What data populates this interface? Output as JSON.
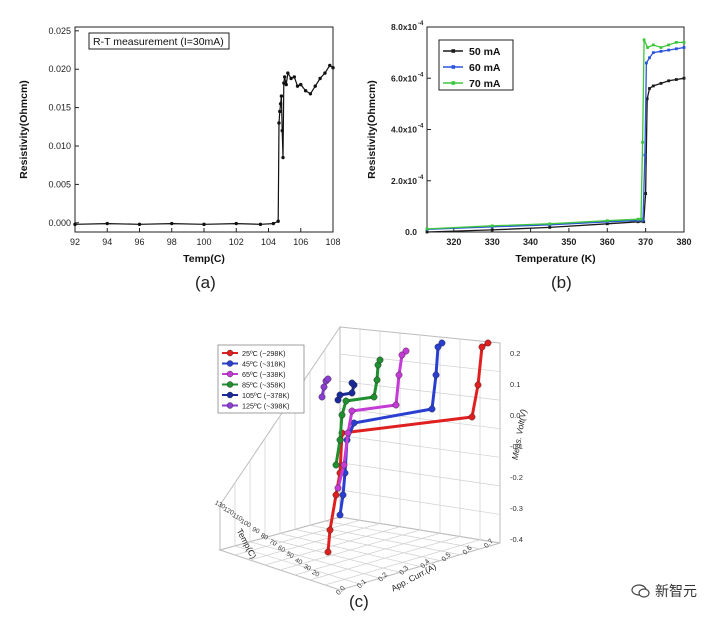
{
  "chart_data": [
    {
      "id": "a",
      "type": "line",
      "panel_label": "(a)",
      "legend_box": "R-T measurement (I=30mA)",
      "xlabel": "Temp(C)",
      "ylabel": "Resistivity(Ohmcm)",
      "xlim": [
        92,
        108
      ],
      "ylim": [
        -0.0012,
        0.0255
      ],
      "xticks": [
        92,
        94,
        96,
        98,
        100,
        102,
        104,
        106,
        108
      ],
      "yticks": [
        "0.000",
        "0.005",
        "0.010",
        "0.015",
        "0.020",
        "0.025"
      ],
      "series": [
        {
          "name": "R-T",
          "color": "#111111",
          "x": [
            92.0,
            94.0,
            96.0,
            98.0,
            100.0,
            102.0,
            103.5,
            104.3,
            104.6,
            104.65,
            104.7,
            104.75,
            104.8,
            104.85,
            104.9,
            104.95,
            105.0,
            105.1,
            105.2,
            105.4,
            105.6,
            105.8,
            106.0,
            106.3,
            106.6,
            106.9,
            107.2,
            107.5,
            107.8,
            108.0
          ],
          "y": [
            -0.0002,
            -0.0001,
            -0.0002,
            -0.0001,
            -0.0002,
            -0.0001,
            -0.0002,
            -0.0001,
            0.0002,
            0.013,
            0.0145,
            0.0155,
            0.0165,
            0.012,
            0.0085,
            0.0182,
            0.019,
            0.018,
            0.0195,
            0.0188,
            0.019,
            0.0178,
            0.018,
            0.0172,
            0.0168,
            0.0178,
            0.0188,
            0.0195,
            0.0205,
            0.0202
          ]
        }
      ]
    },
    {
      "id": "b",
      "type": "line",
      "panel_label": "(b)",
      "xlabel": "Temperature (K)",
      "ylabel": "Resistivity(Ohmcm)",
      "xlim": [
        313,
        380
      ],
      "ylim": [
        0,
        0.0008
      ],
      "xticks": [
        320,
        330,
        340,
        350,
        360,
        370,
        380
      ],
      "yticks": [
        {
          "value": 0,
          "label": "0.0"
        },
        {
          "value": 0.0002,
          "label": "2.0x10"
        },
        {
          "value": 0.0004,
          "label": "4.0x10"
        },
        {
          "value": 0.0006,
          "label": "6.0x10"
        },
        {
          "value": 0.0008,
          "label": "8.0x10"
        }
      ],
      "ytick_exponent": "-4",
      "legend": [
        "50 mA",
        "60 mA",
        "70 mA"
      ],
      "series": [
        {
          "name": "50 mA",
          "color": "#1a1a1a",
          "x": [
            313,
            330,
            345,
            360,
            368,
            369.5,
            370,
            370.4,
            371,
            372,
            374,
            376,
            378,
            380
          ],
          "y": [
            0.0,
            8e-06,
            1.8e-05,
            3.2e-05,
            4e-05,
            4e-05,
            0.00015,
            0.00052,
            0.00056,
            0.00057,
            0.00058,
            0.00059,
            0.000595,
            0.0006
          ]
        },
        {
          "name": "60 mA",
          "color": "#2b55d9",
          "x": [
            313,
            330,
            345,
            360,
            368,
            369.3,
            369.8,
            370.2,
            371,
            372,
            374,
            376,
            378,
            380
          ],
          "y": [
            1e-05,
            2e-05,
            2.8e-05,
            4e-05,
            4.5e-05,
            4.5e-05,
            0.0003,
            0.00066,
            0.00068,
            0.0007,
            0.000705,
            0.00071,
            0.000715,
            0.00072
          ]
        },
        {
          "name": "70 mA",
          "color": "#3ec63e",
          "x": [
            313,
            330,
            345,
            360,
            368,
            368.8,
            369.2,
            369.6,
            370.5,
            372,
            374,
            376,
            378,
            380
          ],
          "y": [
            1.2e-05,
            2.4e-05,
            3.2e-05,
            4.4e-05,
            5e-05,
            5e-05,
            0.00035,
            0.00075,
            0.00072,
            0.00073,
            0.00072,
            0.00073,
            0.00074,
            0.00074
          ]
        }
      ]
    },
    {
      "id": "c",
      "type": "scatter",
      "panel_label": "(c)",
      "zlabel": "Meas. Volt(V)",
      "xlabel": "App. Curr.(A)",
      "ylabel": "Temp(C)",
      "zticks": [
        "0.2",
        "0.1",
        "0.0",
        "-0.1",
        "-0.2",
        "-0.3",
        "-0.4"
      ],
      "xticks": [
        "0.0",
        "0.1",
        "0.2",
        "0.3",
        "0.4",
        "0.5",
        "0.6",
        "0.7"
      ],
      "yticks": [
        "20",
        "30",
        "40",
        "50",
        "60",
        "70",
        "80",
        "90",
        "100",
        "110",
        "120",
        "130"
      ],
      "legend": [
        {
          "label": "25ºC (~298K)",
          "color": "#e02020"
        },
        {
          "label": "45ºC (~318K)",
          "color": "#2a3fd0"
        },
        {
          "label": "65ºC (~338K)",
          "color": "#c43bd6"
        },
        {
          "label": "85ºC (~358K)",
          "color": "#1f8f2f"
        },
        {
          "label": "105ºC (~378K)",
          "color": "#1a2a9a"
        },
        {
          "label": "125ºC (~398K)",
          "color": "#8a3fd0"
        }
      ]
    }
  ],
  "watermark": "新智元"
}
